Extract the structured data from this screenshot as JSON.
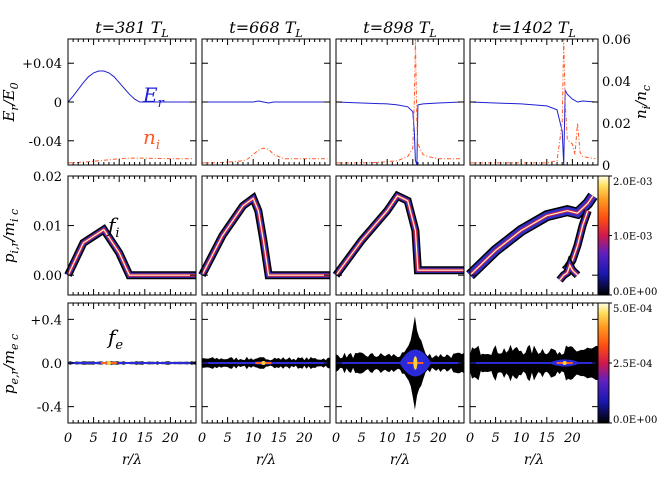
{
  "chart_data": {
    "type": "multi-panel",
    "title": "",
    "time_unit": "T_L",
    "times": [
      "t=381",
      "t=668",
      "t=898",
      "t=1402"
    ],
    "x_ticks": [
      "0",
      "5",
      "10",
      "15",
      "20"
    ],
    "x_label": "r/λ",
    "x_range": [
      0,
      25
    ],
    "rows": [
      {
        "id": "fields",
        "ylabel_left": "E_r/E_0",
        "ylabel_right": "n_i/n_c",
        "left_ticks": [
          "+0.04",
          "0",
          "-0.04"
        ],
        "left_range": [
          -0.065,
          0.065
        ],
        "right_ticks": [
          "0.06",
          "0.04",
          "0.02",
          "0"
        ],
        "right_range": [
          0,
          0.06
        ],
        "series_labels": [
          "E_r",
          "n_i"
        ],
        "series_colors": [
          "#2020d0",
          "#ff5a28"
        ],
        "E_r": [
          {
            "x": [
              0,
              1,
              2,
              3,
              4,
              5,
              6,
              7,
              8,
              9,
              10,
              11,
              12,
              13,
              14,
              15,
              16,
              17,
              18,
              19,
              20,
              21,
              22,
              23,
              24.5
            ],
            "y": [
              0.0,
              0.006,
              0.013,
              0.02,
              0.026,
              0.03,
              0.032,
              0.032,
              0.03,
              0.026,
              0.02,
              0.014,
              0.008,
              0.003,
              0.0,
              0.0,
              0.0,
              0.0,
              0.0,
              0.0,
              0.0,
              0.0,
              0.0,
              0.0,
              0.0
            ]
          },
          {
            "x": [
              0,
              5,
              10,
              11,
              12,
              13,
              14,
              16,
              20,
              24.5
            ],
            "y": [
              0.0,
              0.0,
              0.0,
              0.001,
              0.0,
              -0.001,
              0.0,
              0.0,
              0.0,
              0.0
            ]
          },
          {
            "x": [
              0,
              5,
              10,
              12,
              14,
              15,
              15.3,
              15.5,
              15.8,
              16,
              17,
              20,
              24.5
            ],
            "y": [
              0.0,
              -0.001,
              -0.002,
              -0.003,
              -0.005,
              -0.01,
              -0.03,
              -0.06,
              -0.065,
              -0.003,
              -0.002,
              -0.001,
              0.0
            ]
          },
          {
            "x": [
              0,
              5,
              10,
              15,
              17,
              18,
              18.3,
              18.6,
              19,
              20,
              21,
              22,
              24.5
            ],
            "y": [
              0.0,
              -0.001,
              -0.002,
              -0.004,
              -0.008,
              -0.03,
              -0.065,
              0.012,
              0.008,
              0.003,
              0.0,
              0.001,
              0.0
            ]
          }
        ],
        "n_i": [
          {
            "x": [
              0,
              2,
              4,
              6,
              8,
              10,
              12,
              14,
              16,
              18,
              20,
              22,
              24.5
            ],
            "y": [
              0.001,
              0.0012,
              0.0015,
              0.002,
              0.0025,
              0.003,
              0.0033,
              0.0033,
              0.0032,
              0.0031,
              0.003,
              0.003,
              0.003
            ]
          },
          {
            "x": [
              0,
              2,
              4,
              6,
              8,
              9,
              10,
              11,
              12,
              13,
              14,
              16,
              20,
              24.5
            ],
            "y": [
              0.001,
              0.001,
              0.0012,
              0.0015,
              0.002,
              0.003,
              0.005,
              0.007,
              0.008,
              0.0075,
              0.005,
              0.003,
              0.003,
              0.003
            ]
          },
          {
            "x": [
              0,
              4,
              8,
              12,
              14,
              15,
              15.3,
              15.5,
              15.8,
              16,
              17,
              18,
              20,
              24.5
            ],
            "y": [
              0.001,
              0.001,
              0.0012,
              0.002,
              0.004,
              0.008,
              0.03,
              0.06,
              0.02,
              0.01,
              0.005,
              0.004,
              0.003,
              0.003
            ]
          },
          {
            "x": [
              0,
              5,
              10,
              15,
              17,
              18,
              18.3,
              18.6,
              19,
              20,
              20.5,
              21,
              21.5,
              22,
              24.5
            ],
            "y": [
              0.001,
              0.001,
              0.001,
              0.001,
              0.002,
              0.02,
              0.06,
              0.03,
              0.012,
              0.01,
              0.005,
              0.02,
              0.006,
              0.004,
              0.003
            ]
          }
        ]
      },
      {
        "id": "ions",
        "panel_label": "f_i",
        "ylabel_left": "p_i,r/m_i c",
        "left_ticks": [
          "0.02",
          "0.01",
          "0.00"
        ],
        "left_range": [
          -0.004,
          0.02
        ],
        "colorbar_ticks": [
          "2.0E-03",
          "1.0E-03",
          "0.0E+00"
        ],
        "tracks": [
          {
            "x": [
              0,
              3,
              7,
              10,
              12,
              25
            ],
            "y": [
              0,
              0.0065,
              0.0092,
              0.0045,
              0,
              0
            ]
          },
          {
            "x": [
              0,
              4,
              8,
              10,
              11,
              12,
              13,
              25
            ],
            "y": [
              0,
              0.008,
              0.014,
              0.0155,
              0.013,
              0.007,
              0,
              0
            ]
          },
          {
            "x": [
              0,
              5,
              10,
              12,
              14,
              15.5,
              16,
              25
            ],
            "y": [
              0,
              0.007,
              0.013,
              0.016,
              0.015,
              0.009,
              0.001,
              0.001
            ]
          },
          {
            "x": [
              0,
              5,
              10,
              15,
              19,
              21,
              23,
              24
            ],
            "y": [
              0,
              0.005,
              0.009,
              0.012,
              0.013,
              0.0125,
              0.0145,
              0.016
            ]
          },
          {
            "x": [
              18.5,
              19,
              20,
              21,
              22,
              23
            ],
            "y": [
              0.001,
              0.0015,
              0.003,
              0.006,
              0.01,
              0.013
            ]
          },
          {
            "x": [
              17.5,
              18.3,
              19,
              19.5,
              20,
              21
            ],
            "y": [
              -0.001,
              0.0,
              0.0005,
              0.002,
              0.001,
              0.0
            ]
          }
        ]
      },
      {
        "id": "electrons",
        "panel_label": "f_e",
        "ylabel_left": "p_e,r/m_e c",
        "left_ticks": [
          "+0.4",
          "0.0",
          "-0.4"
        ],
        "left_range": [
          -0.55,
          0.55
        ],
        "colorbar_ticks": [
          "5.0E-04",
          "2.5E-04",
          "0.0E+00"
        ],
        "spread": [
          {
            "center": 8,
            "width": 10,
            "height": 0.02
          },
          {
            "center": 12,
            "width": 12,
            "height": 0.06
          },
          {
            "center": 15.5,
            "width": 15,
            "height": 0.45
          },
          {
            "center": 18.5,
            "width": 15,
            "height": 0.12
          }
        ]
      }
    ]
  }
}
